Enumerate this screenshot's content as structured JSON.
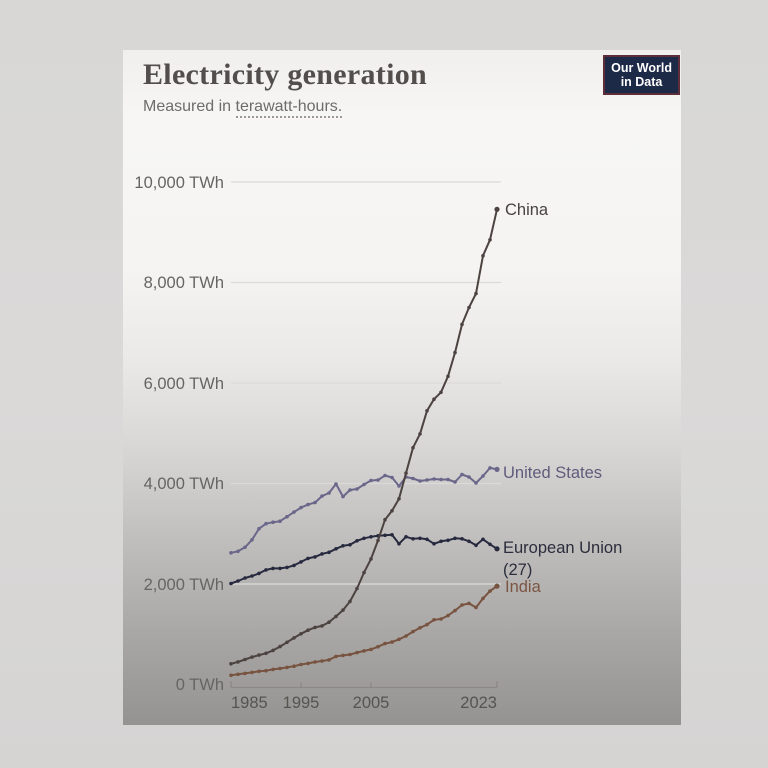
{
  "page": {
    "background": "#d8d7d6",
    "card_background_top": "#f6f5f3",
    "card_background_bottom": "#959391"
  },
  "card": {
    "title": "Electricity generation",
    "subtitle_prefix": "Measured in ",
    "subtitle_underlined": "terawatt-hours.",
    "logo": {
      "line1": "Our World",
      "line2": "in Data",
      "bg": "#1d2a47",
      "border": "#5e2d3a",
      "text_color": "#ffffff"
    }
  },
  "chart_data": {
    "type": "line",
    "title": "Electricity generation",
    "subtitle": "Measured in terawatt-hours.",
    "unit": "TWh",
    "grid": true,
    "legend_position": "end-of-line-labels",
    "xlim": [
      1985,
      2023
    ],
    "ylim": [
      0,
      10000
    ],
    "axis_color": "#8b8885",
    "gridline_color": "#dbdad8",
    "x": [
      1985,
      1986,
      1987,
      1988,
      1989,
      1990,
      1991,
      1992,
      1993,
      1994,
      1995,
      1996,
      1997,
      1998,
      1999,
      2000,
      2001,
      2002,
      2003,
      2004,
      2005,
      2006,
      2007,
      2008,
      2009,
      2010,
      2011,
      2012,
      2013,
      2014,
      2015,
      2016,
      2017,
      2018,
      2019,
      2020,
      2021,
      2022,
      2023
    ],
    "x_ticks": [
      {
        "year": 1985,
        "label": "1985"
      },
      {
        "year": 1995,
        "label": "1995"
      },
      {
        "year": 2005,
        "label": "2005"
      },
      {
        "year": 2023,
        "label": "2023"
      }
    ],
    "y_ticks": [
      {
        "value": 10000,
        "label": "10,000 TWh"
      },
      {
        "value": 8000,
        "label": "8,000 TWh"
      },
      {
        "value": 6000,
        "label": "6,000 TWh"
      },
      {
        "value": 4000,
        "label": "4,000 TWh"
      },
      {
        "value": 2000,
        "label": "2,000 TWh"
      },
      {
        "value": 0,
        "label": "0 TWh"
      }
    ],
    "series": [
      {
        "name": "China",
        "label": "China",
        "color": "#4c4341",
        "label_color": "#474243",
        "values": [
          411,
          450,
          497,
          545,
          585,
          621,
          678,
          754,
          839,
          928,
          1008,
          1081,
          1136,
          1167,
          1239,
          1356,
          1481,
          1654,
          1911,
          2226,
          2500,
          2866,
          3279,
          3457,
          3696,
          4207,
          4713,
          4988,
          5447,
          5678,
          5815,
          6133,
          6604,
          7166,
          7503,
          7779,
          8534,
          8849,
          9456
        ]
      },
      {
        "name": "United States",
        "label": "United States",
        "color": "#6a678a",
        "label_color": "#5f5c7c",
        "values": [
          2620,
          2650,
          2730,
          2880,
          3100,
          3200,
          3230,
          3250,
          3340,
          3430,
          3520,
          3580,
          3620,
          3750,
          3810,
          3990,
          3740,
          3870,
          3890,
          3980,
          4060,
          4070,
          4160,
          4120,
          3950,
          4130,
          4100,
          4050,
          4070,
          4090,
          4080,
          4080,
          4030,
          4180,
          4130,
          4010,
          4150,
          4310,
          4280
        ]
      },
      {
        "name": "European Union (27)",
        "label": "European Union",
        "label_line2": "(27)",
        "color": "#272a3f",
        "label_color": "#2b2d3c",
        "values": [
          2010,
          2060,
          2120,
          2160,
          2210,
          2280,
          2310,
          2310,
          2330,
          2370,
          2440,
          2510,
          2540,
          2600,
          2630,
          2700,
          2760,
          2780,
          2860,
          2910,
          2940,
          2960,
          2970,
          2980,
          2800,
          2940,
          2900,
          2910,
          2890,
          2800,
          2850,
          2870,
          2910,
          2900,
          2850,
          2770,
          2890,
          2790,
          2700
        ]
      },
      {
        "name": "India",
        "label": "India",
        "color": "#775340",
        "label_color": "#7b5544",
        "values": [
          183,
          202,
          221,
          241,
          263,
          275,
          300,
          318,
          340,
          365,
          399,
          420,
          448,
          468,
          490,
          560,
          579,
          597,
          634,
          668,
          699,
          753,
          814,
          843,
          899,
          965,
          1053,
          1128,
          1193,
          1287,
          1304,
          1372,
          1471,
          1583,
          1614,
          1533,
          1714,
          1858,
          1958
        ]
      }
    ]
  }
}
